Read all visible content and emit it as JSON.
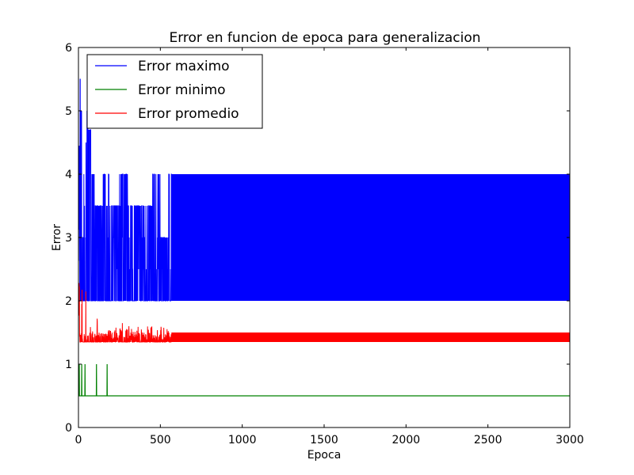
{
  "chart_data": {
    "type": "line",
    "title": "Error en funcion de epoca para generalizacion",
    "xlabel": "Epoca",
    "ylabel": "Error",
    "xlim": [
      0,
      3000
    ],
    "ylim": [
      0,
      6
    ],
    "xticks": [
      0,
      500,
      1000,
      1500,
      2000,
      2500,
      3000
    ],
    "yticks": [
      0,
      1,
      2,
      3,
      4,
      5,
      6
    ],
    "grid": false,
    "legend_position": "top-left",
    "series": [
      {
        "name": "Error maximo",
        "color": "#0000ff",
        "description_points": {
          "early_peaks": [
            [
              0,
              4.5
            ],
            [
              10,
              5.5
            ],
            [
              15,
              5.0
            ],
            [
              20,
              3.0
            ],
            [
              30,
              4.0
            ],
            [
              40,
              4.5
            ],
            [
              50,
              5.0
            ],
            [
              60,
              4.7
            ],
            [
              80,
              4.0
            ],
            [
              100,
              3.5
            ],
            [
              150,
              4.0
            ],
            [
              200,
              3.5
            ],
            [
              250,
              4.0
            ],
            [
              300,
              3.5
            ],
            [
              400,
              3.5
            ],
            [
              450,
              4.0
            ],
            [
              500,
              3.0
            ],
            [
              550,
              4.0
            ],
            [
              570,
              4.0
            ]
          ],
          "steady_range": [
            2.0,
            4.0
          ],
          "steady_start": 570
        }
      },
      {
        "name": "Error minimo",
        "color": "#008000",
        "description_points": {
          "baseline": 0.5,
          "spikes": [
            [
              5,
              1.0
            ],
            [
              20,
              1.0
            ],
            [
              40,
              1.0
            ],
            [
              110,
              1.0
            ],
            [
              175,
              1.0
            ]
          ]
        }
      },
      {
        "name": "Error promedio",
        "color": "#ff0000",
        "description_points": {
          "early_peaks": [
            [
              5,
              2.3
            ],
            [
              15,
              2.25
            ],
            [
              30,
              1.8
            ],
            [
              40,
              2.25
            ],
            [
              60,
              1.7
            ],
            [
              80,
              1.6
            ],
            [
              110,
              1.8
            ],
            [
              130,
              1.5
            ],
            [
              180,
              1.6
            ],
            [
              260,
              1.8
            ],
            [
              300,
              1.65
            ],
            [
              340,
              1.6
            ],
            [
              420,
              1.6
            ],
            [
              520,
              1.6
            ],
            [
              560,
              1.65
            ]
          ],
          "steady_range": [
            1.35,
            1.5
          ],
          "steady_start": 570
        }
      }
    ]
  }
}
